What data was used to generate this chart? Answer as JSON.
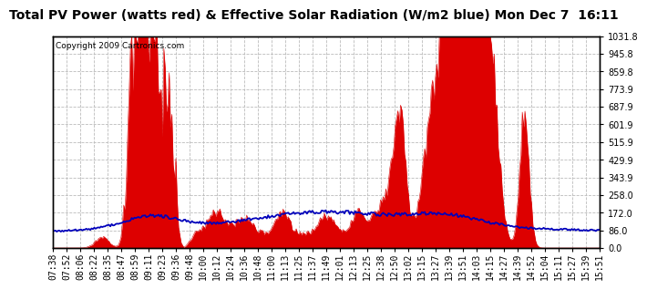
{
  "title": "Total PV Power (watts red) & Effective Solar Radiation (W/m2 blue) Mon Dec 7  16:11",
  "copyright": "Copyright 2009 Cartronics.com",
  "ylabel_right_ticks": [
    0.0,
    86.0,
    172.0,
    258.0,
    343.9,
    429.9,
    515.9,
    601.9,
    687.9,
    773.9,
    859.8,
    945.8,
    1031.8
  ],
  "ymax": 1031.8,
  "ymin": 0.0,
  "bg_color": "#ffffff",
  "fill_color": "#dd0000",
  "line_color": "#0000bb",
  "grid_color": "#bbbbbb",
  "title_fontsize": 10,
  "copyright_fontsize": 6.5,
  "tick_fontsize": 7,
  "xtick_labels": [
    "07:38",
    "07:52",
    "08:06",
    "08:22",
    "08:35",
    "08:47",
    "08:59",
    "09:11",
    "09:23",
    "09:36",
    "09:48",
    "10:00",
    "10:12",
    "10:24",
    "10:36",
    "10:48",
    "11:00",
    "11:13",
    "11:25",
    "11:37",
    "11:49",
    "12:01",
    "12:13",
    "12:25",
    "12:38",
    "12:50",
    "13:02",
    "13:15",
    "13:27",
    "13:39",
    "13:51",
    "14:03",
    "14:15",
    "14:27",
    "14:39",
    "14:52",
    "15:04",
    "15:11",
    "15:27",
    "15:39",
    "15:51"
  ]
}
